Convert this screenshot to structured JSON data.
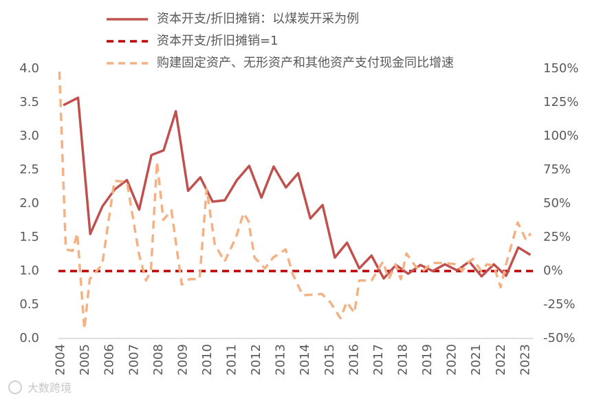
{
  "chart_data": {
    "type": "line",
    "xlim": [
      2003.9,
      2023.3
    ],
    "xticks": [
      2004,
      2005,
      2006,
      2007,
      2008,
      2009,
      2010,
      2011,
      2012,
      2013,
      2014,
      2015,
      2016,
      2017,
      2018,
      2019,
      2020,
      2021,
      2022,
      2023
    ],
    "ylim": [
      0,
      4
    ],
    "yticks": [
      {
        "value": 0,
        "label": "0.0"
      },
      0.5,
      {
        "value": 1,
        "label": "1.0"
      },
      1.5,
      {
        "value": 2,
        "label": "2.0"
      },
      2.5,
      {
        "value": 3,
        "label": "3.0"
      },
      3.5,
      {
        "value": 4,
        "label": "4.0"
      }
    ],
    "y2lim": [
      -50,
      150
    ],
    "y2ticks": [
      {
        "value": -50,
        "label": "-50%"
      },
      {
        "value": -25,
        "label": "-25%"
      },
      {
        "value": 0,
        "label": "0%"
      },
      {
        "value": 25,
        "label": "25%"
      },
      {
        "value": 50,
        "label": "50%"
      },
      {
        "value": 75,
        "label": "75%"
      },
      {
        "value": 100,
        "label": "100%"
      },
      {
        "value": 125,
        "label": "125%"
      },
      {
        "value": 150,
        "label": "150%"
      }
    ],
    "grid": false,
    "legend": "top",
    "series": [
      {
        "name": "资本开支/折旧摊销：以煤炭开采为例",
        "color": "#c0504d",
        "dash": false,
        "x": [
          2004.1,
          2004.7,
          2005.2,
          2005.7,
          2006.2,
          2006.7,
          2007.2,
          2007.7,
          2008.2,
          2008.7,
          2009.2,
          2009.7,
          2010.2,
          2010.7,
          2011.2,
          2011.7,
          2012.2,
          2012.7,
          2013.2,
          2013.7,
          2014.2,
          2014.7,
          2015.2,
          2015.7,
          2016.2,
          2016.7,
          2017.2,
          2017.7,
          2018.2,
          2018.7,
          2019.2,
          2019.7,
          2020.2,
          2020.7,
          2021.2,
          2021.7,
          2022.2,
          2022.7,
          2023.2
        ],
        "values": [
          3.46,
          3.57,
          1.55,
          1.96,
          2.21,
          2.35,
          1.91,
          2.72,
          2.79,
          3.37,
          2.19,
          2.39,
          2.03,
          2.05,
          2.35,
          2.56,
          2.09,
          2.55,
          2.24,
          2.45,
          1.78,
          1.98,
          1.2,
          1.42,
          1.04,
          1.23,
          0.89,
          1.09,
          0.96,
          1.09,
          1.0,
          1.1,
          1.01,
          1.14,
          0.92,
          1.1,
          0.93,
          1.35,
          1.24
        ]
      },
      {
        "name": "购建固定资产、无形资产和其他资产支付现金同比增速",
        "color": "#f4b183",
        "dash": true,
        "axis": "y2",
        "x": [
          2003.94,
          2004.2,
          2004.48,
          2004.67,
          2004.96,
          2005.18,
          2005.69,
          2006.19,
          2006.7,
          2007.2,
          2007.48,
          2007.68,
          2007.93,
          2008.19,
          2008.52,
          2008.94,
          2009.25,
          2009.67,
          2009.96,
          2010.29,
          2010.69,
          2011.16,
          2011.47,
          2011.67,
          2011.92,
          2012.34,
          2012.68,
          2013.19,
          2013.47,
          2013.89,
          2014.67,
          2015.01,
          2015.43,
          2015.69,
          2016.0,
          2016.2,
          2016.7,
          2017.17,
          2017.4,
          2017.68,
          2017.9,
          2018.13,
          2018.52,
          2018.8,
          2019.17,
          2019.67,
          2020.18,
          2020.4,
          2020.69,
          2020.85,
          2021.19,
          2021.42,
          2021.7,
          2021.98,
          2022.2,
          2022.68,
          2023.02,
          2023.21
        ],
        "values": [
          148,
          16,
          15,
          28,
          -43,
          -6,
          5,
          67,
          66,
          12,
          -7,
          0,
          81,
          38,
          45,
          -10,
          -6,
          -6,
          61,
          20,
          7,
          25,
          43,
          37,
          10,
          2,
          10,
          16,
          -2,
          -18,
          -17,
          -23,
          -35,
          -23,
          -31,
          -7,
          -7,
          7,
          -6,
          5,
          -6,
          13,
          3,
          0,
          6,
          6,
          5,
          0,
          7,
          9,
          0,
          5,
          4,
          -12,
          5,
          36,
          23,
          28
        ]
      }
    ],
    "reference_lines": [
      {
        "name": "资本开支/折旧摊销=1",
        "value": 1,
        "color": "#c00000",
        "dash": true
      }
    ]
  },
  "watermark": "大数跨境"
}
